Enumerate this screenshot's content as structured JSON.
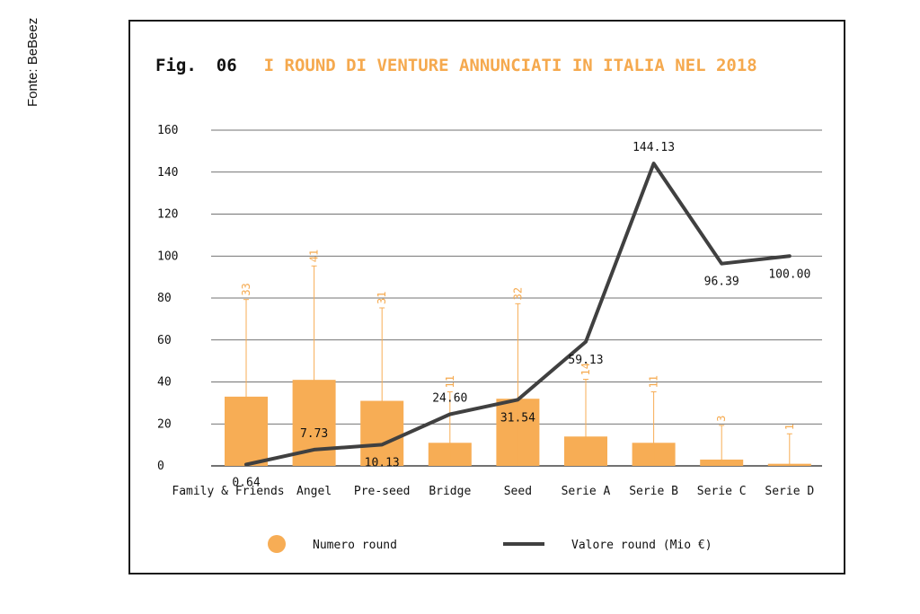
{
  "source": "Fonte: BeBeez",
  "figure": {
    "label": "Fig.",
    "number": "06",
    "title": "I ROUND DI VENTURE ANNUNCIATI IN ITALIA NEL 2018"
  },
  "colors": {
    "bar": "#f7ad55",
    "line": "#404040",
    "title": "#f5a94e",
    "grid": "#444444"
  },
  "chart_data": {
    "type": "bar",
    "categories": [
      "Family & Friends",
      "Angel",
      "Pre-seed",
      "Bridge",
      "Seed",
      "Serie A",
      "Serie B",
      "Serie C",
      "Serie D"
    ],
    "ylim": [
      0,
      160
    ],
    "yticks": [
      "0",
      "20",
      "40",
      "60",
      "80",
      "100",
      "120",
      "140",
      "160"
    ],
    "grid": true,
    "legend_position": "bottom",
    "series": [
      {
        "name": "Numero round",
        "type": "bar",
        "values": [
          33,
          41,
          31,
          11,
          32,
          14,
          11,
          3,
          1
        ],
        "labels": [
          "33",
          "41",
          "31",
          "11",
          "32",
          "14",
          "11",
          "3",
          "1"
        ]
      },
      {
        "name": "Valore round (Mio €)",
        "type": "line",
        "values": [
          0.64,
          7.73,
          10.13,
          24.6,
          31.54,
          59.13,
          144.13,
          96.39,
          100.0
        ],
        "labels": [
          "0.64",
          "7.73",
          "10.13",
          "24.60",
          "31.54",
          "59.13",
          "144.13",
          "96.39",
          "100.00"
        ]
      }
    ]
  }
}
